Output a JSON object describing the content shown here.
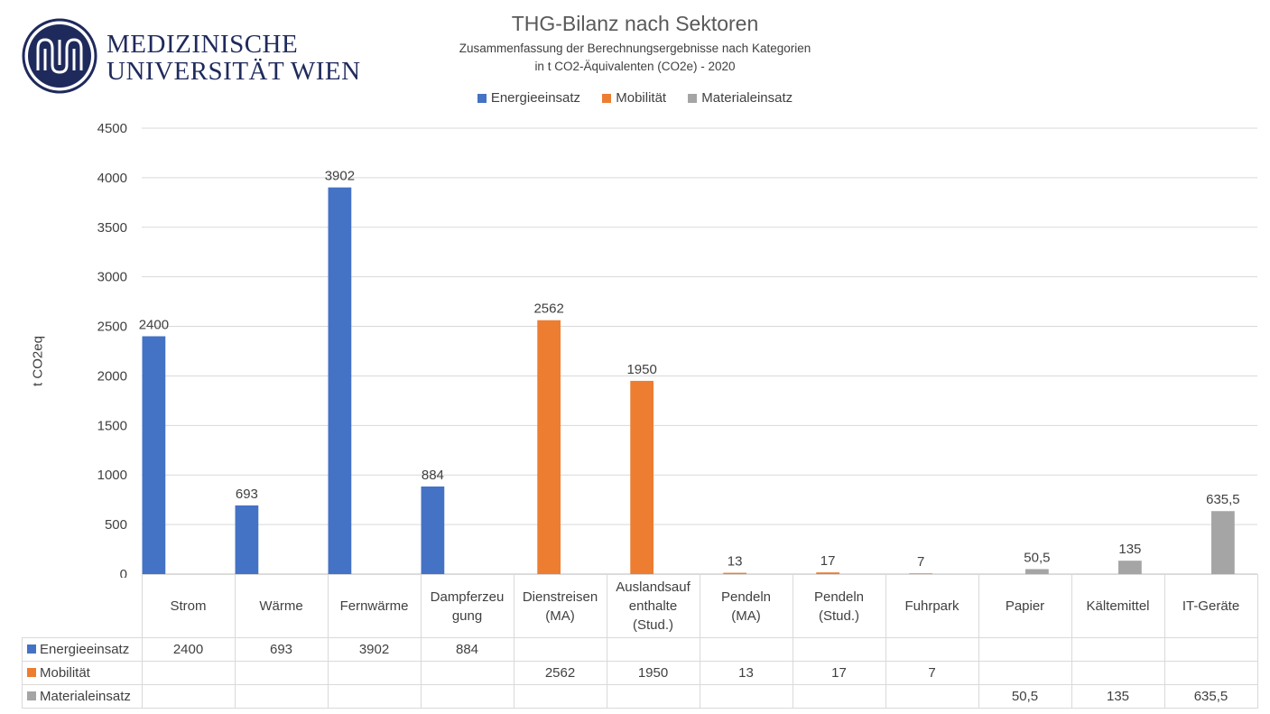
{
  "logo": {
    "line1": "MEDIZINISCHE",
    "line2": "UNIVERSITÄT WIEN",
    "color": "#1f2a5c"
  },
  "chart_data": {
    "type": "bar",
    "title": "THG-Bilanz nach Sektoren",
    "subtitle": [
      "Zusammenfassung der Berechnungsergebnisse nach Kategorien",
      "in t CO2-Äquivalenten (CO2e) - 2020"
    ],
    "ylabel": "t CO2eq",
    "xlabel": "",
    "ylim": [
      0,
      4500
    ],
    "yticks": [
      "0",
      "500",
      "1000",
      "1500",
      "2000",
      "2500",
      "3000",
      "3500",
      "4000",
      "4500"
    ],
    "grid": true,
    "legend_position": "top",
    "categories": [
      "Strom",
      "Wärme",
      "Fernwärme",
      "Dampferzeugung",
      "Dienstreisen (MA)",
      "Auslandsaufenthalte (Stud.)",
      "Pendeln (MA)",
      "Pendeln (Stud.)",
      "Fuhrpark",
      "Papier",
      "Kältemittel",
      "IT-Geräte"
    ],
    "category_lines": [
      [
        "Strom"
      ],
      [
        "Wärme"
      ],
      [
        "Fernwärme"
      ],
      [
        "Dampferzeu",
        "gung"
      ],
      [
        "Dienstreisen",
        "(MA)"
      ],
      [
        "Auslandsauf",
        "enthalte",
        "(Stud.)"
      ],
      [
        "Pendeln",
        "(MA)"
      ],
      [
        "Pendeln",
        "(Stud.)"
      ],
      [
        "Fuhrpark"
      ],
      [
        "Papier"
      ],
      [
        "Kältemittel"
      ],
      [
        "IT-Geräte"
      ]
    ],
    "series": [
      {
        "name": "Energieeinsatz",
        "color": "#4472c4",
        "values": [
          2400,
          693,
          3902,
          884,
          null,
          null,
          null,
          null,
          null,
          null,
          null,
          null
        ],
        "labels": [
          "2400",
          "693",
          "3902",
          "884",
          "",
          "",
          "",
          "",
          "",
          "",
          "",
          ""
        ]
      },
      {
        "name": "Mobilität",
        "color": "#ed7d31",
        "values": [
          null,
          null,
          null,
          null,
          2562,
          1950,
          13,
          17,
          7,
          null,
          null,
          null
        ],
        "labels": [
          "",
          "",
          "",
          "",
          "2562",
          "1950",
          "13",
          "17",
          "7",
          "",
          "",
          ""
        ]
      },
      {
        "name": "Materialeinsatz",
        "color": "#a5a5a5",
        "values": [
          null,
          null,
          null,
          null,
          null,
          null,
          null,
          null,
          null,
          50.5,
          135,
          635.5
        ],
        "labels": [
          "",
          "",
          "",
          "",
          "",
          "",
          "",
          "",
          "",
          "50,5",
          "135",
          "635,5"
        ]
      }
    ]
  }
}
